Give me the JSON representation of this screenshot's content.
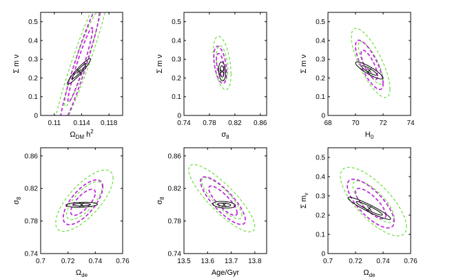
{
  "colors": {
    "black": "#000000",
    "purple": "#bf2edb",
    "green": "#5ddc2a"
  },
  "chart_data": [
    {
      "type": "contour",
      "title": "",
      "xlabel": "Ω_DM h²",
      "xlabel_main": "Ω",
      "xlabel_sub": "DM",
      "xlabel_suffix": " h",
      "xlabel_sup": "2",
      "ylabel": "Σ m ν",
      "xlim": [
        0.108,
        0.12
      ],
      "ylim": [
        0,
        0.55
      ],
      "xticks": [
        0.11,
        0.114,
        0.118
      ],
      "xtick_labels": [
        "0.11",
        "0.114",
        "0.118"
      ],
      "yticks": [
        0,
        0.1,
        0.2,
        0.3,
        0.4,
        0.5
      ],
      "ytick_labels": [
        "0",
        "0.1",
        "0.2",
        "0.3",
        "0.4",
        "0.5"
      ],
      "best_fit": [
        0.1136,
        0.235
      ],
      "contours": [
        {
          "name": "inner 68%",
          "style": "solid",
          "color": "black",
          "center": [
            0.1136,
            0.235
          ],
          "rx": 0.00105,
          "ry": 0.012,
          "slope": 38.0
        },
        {
          "name": "inner 95%",
          "style": "solid",
          "color": "black",
          "center": [
            0.1136,
            0.235
          ],
          "rx": 0.0017,
          "ry": 0.022,
          "slope": 38.0
        },
        {
          "name": "mid 68%",
          "style": "dashed",
          "color": "purple",
          "center": [
            0.1138,
            0.27
          ],
          "rx": 0.0018,
          "ry": 0.06,
          "slope": 105.0
        },
        {
          "name": "mid 95%",
          "style": "dashed",
          "color": "purple",
          "center": [
            0.1138,
            0.27
          ],
          "rx": 0.003,
          "ry": 0.1,
          "slope": 105.0
        },
        {
          "name": "outer 68%",
          "style": "dashed",
          "color": "green",
          "center": [
            0.114,
            0.3
          ],
          "rx": 0.0025,
          "ry": 0.085,
          "slope": 95.0
        },
        {
          "name": "outer 95%",
          "style": "dashed",
          "color": "green",
          "center": [
            0.114,
            0.3
          ],
          "rx": 0.0041,
          "ry": 0.135,
          "slope": 95.0
        }
      ]
    },
    {
      "type": "contour",
      "title": "",
      "xlabel": "σ8",
      "xlabel_main": "σ",
      "xlabel_sub": "8",
      "xlabel_suffix": "",
      "xlabel_sup": "",
      "ylabel": "Σ m ν",
      "xlim": [
        0.74,
        0.87
      ],
      "ylim": [
        0,
        0.55
      ],
      "xticks": [
        0.74,
        0.78,
        0.82,
        0.86
      ],
      "xtick_labels": [
        "0.74",
        "0.78",
        "0.82",
        "0.86"
      ],
      "yticks": [
        0,
        0.1,
        0.2,
        0.3,
        0.4,
        0.5
      ],
      "ytick_labels": [
        "0",
        "0.1",
        "0.2",
        "0.3",
        "0.4",
        "0.5"
      ],
      "best_fit": [
        0.8,
        0.235
      ],
      "contours": [
        {
          "name": "inner 68%",
          "style": "solid",
          "color": "black",
          "center": [
            0.8,
            0.235
          ],
          "rx": 0.003,
          "ry": 0.03,
          "slope": -1.5
        },
        {
          "name": "inner 95%",
          "style": "solid",
          "color": "black",
          "center": [
            0.8,
            0.235
          ],
          "rx": 0.0055,
          "ry": 0.05,
          "slope": -1.5
        },
        {
          "name": "mid 68%",
          "style": "dashed",
          "color": "purple",
          "center": [
            0.797,
            0.27
          ],
          "rx": 0.006,
          "ry": 0.055,
          "slope": -4.2
        },
        {
          "name": "mid 95%",
          "style": "dashed",
          "color": "purple",
          "center": [
            0.797,
            0.27
          ],
          "rx": 0.01,
          "ry": 0.09,
          "slope": -4.2
        },
        {
          "name": "outer 68%",
          "style": "dashed",
          "color": "green",
          "center": [
            0.8,
            0.28
          ],
          "rx": 0.009,
          "ry": 0.085,
          "slope": -4.2
        },
        {
          "name": "outer 95%",
          "style": "dashed",
          "color": "green",
          "center": [
            0.8,
            0.28
          ],
          "rx": 0.014,
          "ry": 0.13,
          "slope": -4.2
        }
      ]
    },
    {
      "type": "contour",
      "title": "",
      "xlabel": "H0",
      "xlabel_main": "H",
      "xlabel_sub": "0",
      "xlabel_suffix": "",
      "xlabel_sup": "",
      "ylabel": "Σ m ν",
      "xlim": [
        68,
        74
      ],
      "ylim": [
        0,
        0.55
      ],
      "xticks": [
        68,
        70,
        72,
        74
      ],
      "xtick_labels": [
        "68",
        "70",
        "72",
        "74"
      ],
      "yticks": [
        0,
        0.1,
        0.2,
        0.3,
        0.4,
        0.5
      ],
      "ytick_labels": [
        "0",
        "0.1",
        "0.2",
        "0.3",
        "0.4",
        "0.5"
      ],
      "best_fit": [
        71.0,
        0.24
      ],
      "contours": [
        {
          "name": "inner 68%",
          "style": "solid",
          "color": "black",
          "center": [
            71.0,
            0.24
          ],
          "rx": 0.55,
          "ry": 0.012,
          "slope": -0.04
        },
        {
          "name": "inner 95%",
          "style": "solid",
          "color": "black",
          "center": [
            71.0,
            0.24
          ],
          "rx": 1.0,
          "ry": 0.022,
          "slope": -0.04
        },
        {
          "name": "mid 68%",
          "style": "dashed",
          "color": "purple",
          "center": [
            71.0,
            0.27
          ],
          "rx": 0.6,
          "ry": 0.05,
          "slope": -0.1
        },
        {
          "name": "mid 95%",
          "style": "dashed",
          "color": "purple",
          "center": [
            71.0,
            0.27
          ],
          "rx": 1.0,
          "ry": 0.085,
          "slope": -0.1
        },
        {
          "name": "outer 68%",
          "style": "dashed",
          "color": "green",
          "center": [
            71.1,
            0.28
          ],
          "rx": 0.9,
          "ry": 0.07,
          "slope": -0.1
        },
        {
          "name": "outer 95%",
          "style": "dashed",
          "color": "green",
          "center": [
            71.1,
            0.28
          ],
          "rx": 1.4,
          "ry": 0.12,
          "slope": -0.1
        }
      ]
    },
    {
      "type": "contour",
      "title": "",
      "xlabel": "Ωde",
      "xlabel_main": "Ω",
      "xlabel_sub": "de",
      "xlabel_suffix": "",
      "xlabel_sup": "",
      "ylabel": "σ8",
      "ylabel_main": "σ",
      "ylabel_sub": "8",
      "xlim": [
        0.7,
        0.76
      ],
      "ylim": [
        0.74,
        0.87
      ],
      "xticks": [
        0.7,
        0.72,
        0.74,
        0.76
      ],
      "xtick_labels": [
        "0.7",
        "0.72",
        "0.74",
        "0.76"
      ],
      "yticks": [
        0.74,
        0.78,
        0.82,
        0.86
      ],
      "ytick_labels": [
        "0.74",
        "0.78",
        "0.82",
        "0.86"
      ],
      "best_fit": [
        0.73,
        0.8
      ],
      "contours": [
        {
          "name": "inner 68%",
          "style": "solid",
          "color": "black",
          "center": [
            0.73,
            0.8
          ],
          "rx": 0.0065,
          "ry": 0.0015,
          "slope": 0.05
        },
        {
          "name": "inner 95%",
          "style": "solid",
          "color": "black",
          "center": [
            0.73,
            0.8
          ],
          "rx": 0.0115,
          "ry": 0.003,
          "slope": 0.05
        },
        {
          "name": "mid 68%",
          "style": "dashed",
          "color": "purple",
          "center": [
            0.731,
            0.803
          ],
          "rx": 0.009,
          "ry": 0.011,
          "slope": 1.3
        },
        {
          "name": "mid 95%",
          "style": "dashed",
          "color": "purple",
          "center": [
            0.731,
            0.803
          ],
          "rx": 0.0145,
          "ry": 0.02,
          "slope": 1.3
        },
        {
          "name": "outer 68%",
          "style": "dashed",
          "color": "green",
          "center": [
            0.732,
            0.805
          ],
          "rx": 0.013,
          "ry": 0.016,
          "slope": 1.3
        },
        {
          "name": "outer 95%",
          "style": "dashed",
          "color": "green",
          "center": [
            0.732,
            0.805
          ],
          "rx": 0.021,
          "ry": 0.026,
          "slope": 1.3
        }
      ]
    },
    {
      "type": "contour",
      "title": "",
      "xlabel": "Age/Gyr",
      "xlabel_main": "Age/Gyr",
      "xlabel_sub": "",
      "xlabel_suffix": "",
      "xlabel_sup": "",
      "ylabel": "σ8",
      "ylabel_main": "σ",
      "ylabel_sub": "8",
      "xlim": [
        13.5,
        13.85
      ],
      "ylim": [
        0.74,
        0.87
      ],
      "xticks": [
        13.5,
        13.6,
        13.7,
        13.8
      ],
      "xtick_labels": [
        "13.5",
        "13.6",
        "13.7",
        "13.8"
      ],
      "yticks": [
        0.74,
        0.78,
        0.82,
        0.86
      ],
      "ytick_labels": [
        "0.74",
        "0.78",
        "0.82",
        "0.86"
      ],
      "best_fit": [
        13.67,
        0.8
      ],
      "contours": [
        {
          "name": "inner 68%",
          "style": "solid",
          "color": "black",
          "center": [
            13.67,
            0.8
          ],
          "rx": 0.028,
          "ry": 0.002,
          "slope": -0.02
        },
        {
          "name": "inner 95%",
          "style": "solid",
          "color": "black",
          "center": [
            13.67,
            0.8
          ],
          "rx": 0.048,
          "ry": 0.004,
          "slope": -0.02
        },
        {
          "name": "mid 68%",
          "style": "dashed",
          "color": "purple",
          "center": [
            13.665,
            0.805
          ],
          "rx": 0.06,
          "ry": 0.01,
          "slope": -0.25
        },
        {
          "name": "mid 95%",
          "style": "dashed",
          "color": "purple",
          "center": [
            13.665,
            0.805
          ],
          "rx": 0.095,
          "ry": 0.017,
          "slope": -0.25
        },
        {
          "name": "outer 68%",
          "style": "dashed",
          "color": "green",
          "center": [
            13.66,
            0.808
          ],
          "rx": 0.085,
          "ry": 0.014,
          "slope": -0.25
        },
        {
          "name": "outer 95%",
          "style": "dashed",
          "color": "green",
          "center": [
            13.66,
            0.808
          ],
          "rx": 0.14,
          "ry": 0.022,
          "slope": -0.25
        }
      ]
    },
    {
      "type": "contour",
      "title": "",
      "xlabel": "Ωde",
      "xlabel_main": "Ω",
      "xlabel_sub": "de",
      "xlabel_suffix": "",
      "xlabel_sup": "",
      "ylabel": "Σ mν",
      "ylabel_main": "Σ m",
      "ylabel_sub": "ν",
      "xlim": [
        0.7,
        0.76
      ],
      "ylim": [
        0,
        0.55
      ],
      "xticks": [
        0.7,
        0.72,
        0.74,
        0.76
      ],
      "xtick_labels": [
        "0.7",
        "0.72",
        "0.74",
        "0.76"
      ],
      "yticks": [
        0,
        0.1,
        0.2,
        0.3,
        0.4,
        0.5
      ],
      "ytick_labels": [
        "0",
        "0.1",
        "0.2",
        "0.3",
        "0.4",
        "0.5"
      ],
      "best_fit": [
        0.73,
        0.235
      ],
      "contours": [
        {
          "name": "inner 68%",
          "style": "solid",
          "color": "black",
          "center": [
            0.73,
            0.235
          ],
          "rx": 0.0095,
          "ry": 0.012,
          "slope": -3.5
        },
        {
          "name": "inner 95%",
          "style": "solid",
          "color": "black",
          "center": [
            0.73,
            0.235
          ],
          "rx": 0.0155,
          "ry": 0.02,
          "slope": -3.5
        },
        {
          "name": "mid 68%",
          "style": "dashed",
          "color": "purple",
          "center": [
            0.731,
            0.26
          ],
          "rx": 0.011,
          "ry": 0.05,
          "slope": -5.5
        },
        {
          "name": "mid 95%",
          "style": "dashed",
          "color": "purple",
          "center": [
            0.731,
            0.26
          ],
          "rx": 0.017,
          "ry": 0.085,
          "slope": -5.5
        },
        {
          "name": "outer 68%",
          "style": "dashed",
          "color": "green",
          "center": [
            0.733,
            0.27
          ],
          "rx": 0.015,
          "ry": 0.07,
          "slope": -5.5
        },
        {
          "name": "outer 95%",
          "style": "dashed",
          "color": "green",
          "center": [
            0.733,
            0.27
          ],
          "rx": 0.024,
          "ry": 0.12,
          "slope": -5.5
        }
      ]
    }
  ]
}
